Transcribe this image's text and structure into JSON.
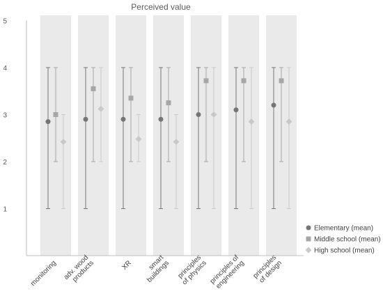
{
  "chart_data": {
    "type": "scatter",
    "title": "Perceived value",
    "xlabel": "",
    "ylabel": "",
    "ylim": [
      0,
      5
    ],
    "yticks": [
      "1",
      "2",
      "3",
      "4",
      "5"
    ],
    "grid": false,
    "legend_position": "right",
    "categories": [
      [
        "monitoring"
      ],
      [
        "adv. wood",
        "products"
      ],
      [
        "XR"
      ],
      [
        "smart",
        "buildings"
      ],
      [
        "principles",
        "of physics"
      ],
      [
        "principles of",
        "engineering"
      ],
      [
        "principles",
        "of design"
      ]
    ],
    "series": [
      {
        "name": "Elementary (mean)",
        "marker": "circle",
        "color": "#757575",
        "values": [
          2.85,
          2.9,
          2.9,
          2.9,
          3.0,
          3.1,
          3.2
        ],
        "error_low": [
          1,
          1,
          1,
          1,
          1,
          1,
          1
        ],
        "error_high": [
          4,
          4,
          4,
          4,
          4,
          4,
          4
        ]
      },
      {
        "name": "Middle school (mean)",
        "marker": "square",
        "color": "#a6a6a6",
        "values": [
          3.0,
          3.55,
          3.35,
          3.25,
          3.72,
          3.72,
          3.72
        ],
        "error_low": [
          2,
          2,
          2,
          2,
          2,
          2,
          2
        ],
        "error_high": [
          4,
          4,
          4,
          4,
          4,
          4,
          4
        ]
      },
      {
        "name": "High school (mean)",
        "marker": "diamond",
        "color": "#c9c9c9",
        "values": [
          2.42,
          3.12,
          2.48,
          2.42,
          3.0,
          2.85,
          2.85
        ],
        "error_low": [
          1,
          2,
          2,
          1,
          1,
          1,
          1
        ],
        "error_high": [
          3,
          4,
          3,
          3,
          4,
          4,
          4
        ]
      }
    ]
  }
}
